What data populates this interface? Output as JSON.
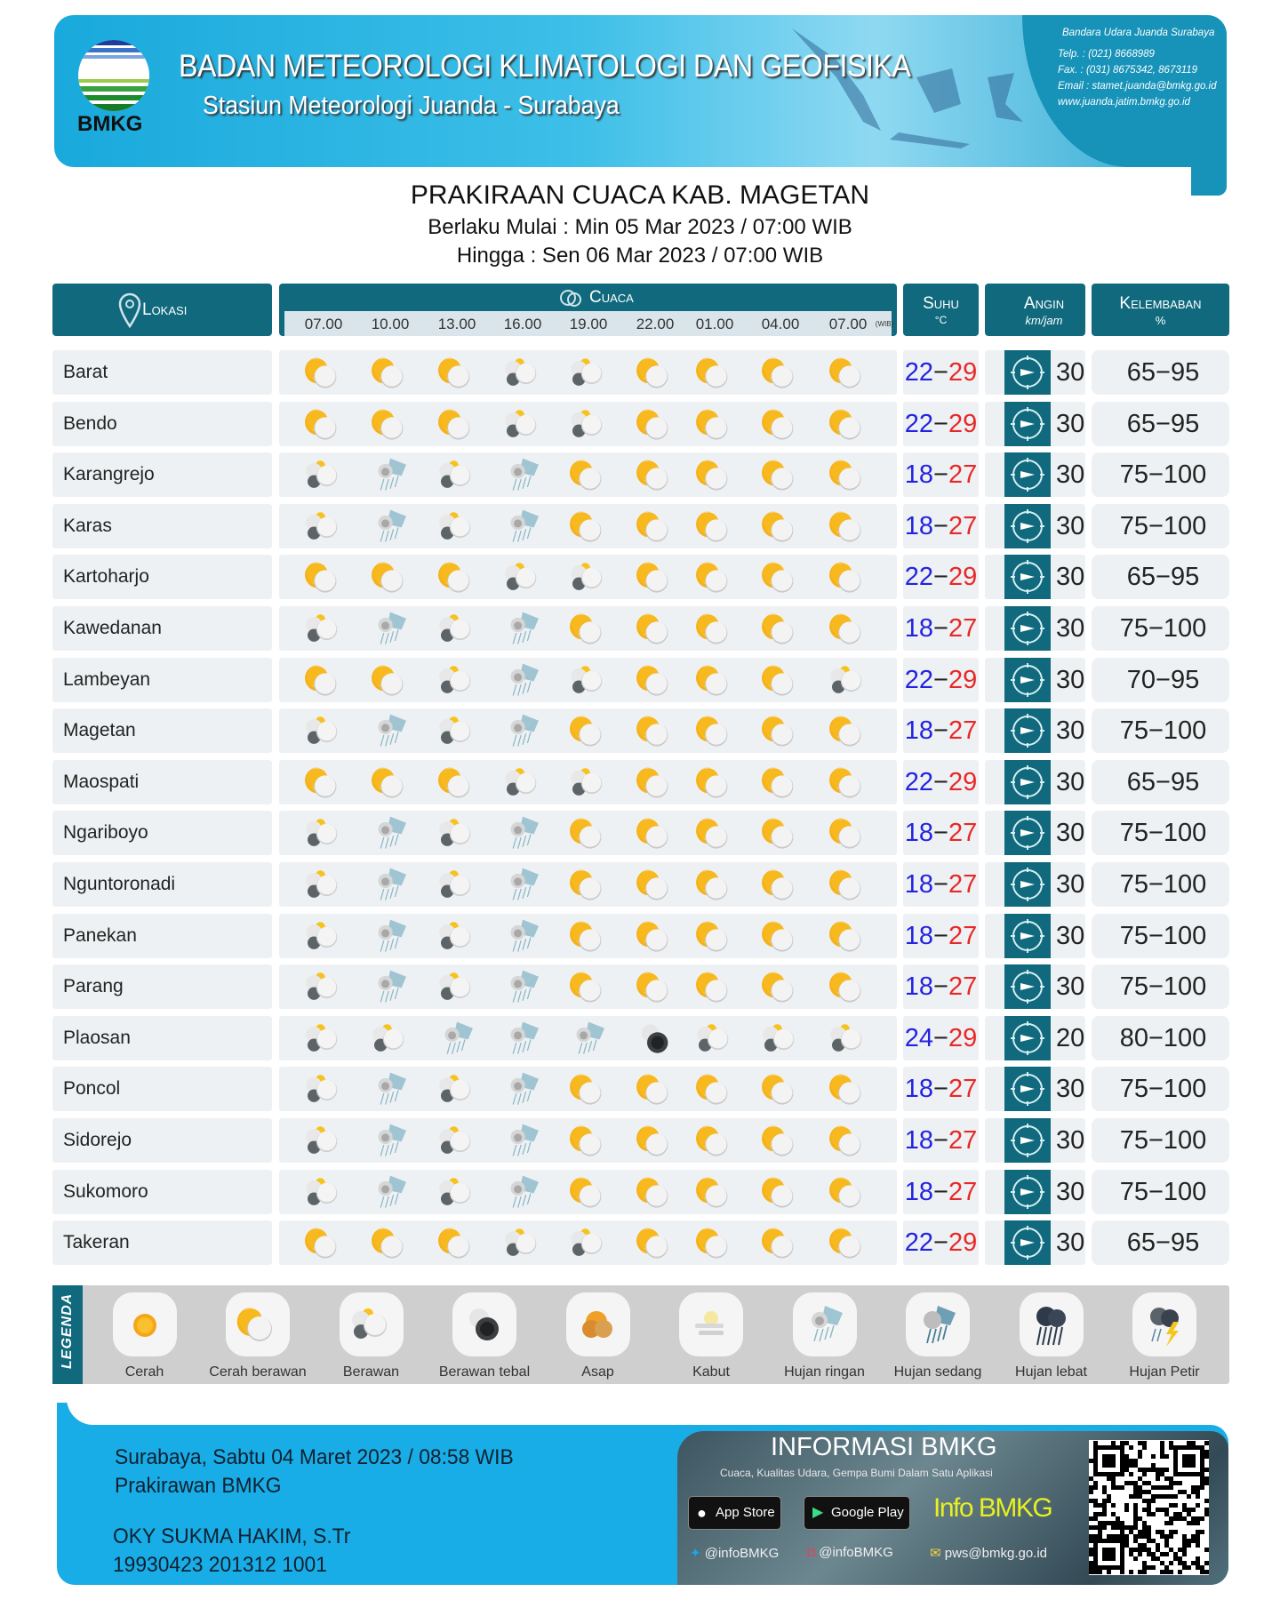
{
  "header": {
    "org_name": "BADAN METEOROLOGI KLIMATOLOGI DAN GEOFISIKA",
    "station": "Stasiun Meteorologi Juanda - Surabaya",
    "logo_text": "BMKG",
    "contact": {
      "address": "Bandara Udara Juanda  Surabaya",
      "telp": "Telp.  : (021) 8668989",
      "fax": "Fax.   : (031) 8675342, 8673119",
      "email": "Email : stamet.juanda@bmkg.go.id",
      "web": "www.juanda.jatim.bmkg.go.id"
    }
  },
  "title": "PRAKIRAAN CUACA KAB. MAGETAN",
  "valid_from": "Berlaku Mulai : Min 05 Mar 2023 / 07:00 WIB",
  "valid_to": "Hingga : Sen 06 Mar 2023 / 07:00 WIB",
  "table": {
    "headers": {
      "lokasi": "Lokasi",
      "cuaca": "Cuaca",
      "suhu": "Suhu",
      "suhu_unit": "°C",
      "angin": "Angin",
      "angin_unit": "km/jam",
      "kelembaban": "Kelembaban",
      "kelembaban_unit": "%",
      "hours_unit": "(WIB)"
    },
    "hours": [
      "07.00",
      "10.00",
      "13.00",
      "16.00",
      "19.00",
      "22.00",
      "01.00",
      "04.00",
      "07.00"
    ],
    "wind_direction_icon": "compass-arrow-east-icon",
    "rows": [
      {
        "name": "Barat",
        "wx": [
          "cerah-berawan",
          "cerah-berawan",
          "cerah-berawan",
          "berawan",
          "berawan",
          "cerah-berawan",
          "cerah-berawan",
          "cerah-berawan",
          "cerah-berawan"
        ],
        "tmin": "22",
        "tmax": "29",
        "wind": "30",
        "hum": "65−95"
      },
      {
        "name": "Bendo",
        "wx": [
          "cerah-berawan",
          "cerah-berawan",
          "cerah-berawan",
          "berawan",
          "berawan",
          "cerah-berawan",
          "cerah-berawan",
          "cerah-berawan",
          "cerah-berawan"
        ],
        "tmin": "22",
        "tmax": "29",
        "wind": "30",
        "hum": "65−95"
      },
      {
        "name": "Karangrejo",
        "wx": [
          "berawan",
          "hujan-ringan",
          "berawan",
          "hujan-ringan",
          "cerah-berawan",
          "cerah-berawan",
          "cerah-berawan",
          "cerah-berawan",
          "cerah-berawan"
        ],
        "tmin": "18",
        "tmax": "27",
        "wind": "30",
        "hum": "75−100"
      },
      {
        "name": "Karas",
        "wx": [
          "berawan",
          "hujan-ringan",
          "berawan",
          "hujan-ringan",
          "cerah-berawan",
          "cerah-berawan",
          "cerah-berawan",
          "cerah-berawan",
          "cerah-berawan"
        ],
        "tmin": "18",
        "tmax": "27",
        "wind": "30",
        "hum": "75−100"
      },
      {
        "name": "Kartoharjo",
        "wx": [
          "cerah-berawan",
          "cerah-berawan",
          "cerah-berawan",
          "berawan",
          "berawan",
          "cerah-berawan",
          "cerah-berawan",
          "cerah-berawan",
          "cerah-berawan"
        ],
        "tmin": "22",
        "tmax": "29",
        "wind": "30",
        "hum": "65−95"
      },
      {
        "name": "Kawedanan",
        "wx": [
          "berawan",
          "hujan-ringan",
          "berawan",
          "hujan-ringan",
          "cerah-berawan",
          "cerah-berawan",
          "cerah-berawan",
          "cerah-berawan",
          "cerah-berawan"
        ],
        "tmin": "18",
        "tmax": "27",
        "wind": "30",
        "hum": "75−100"
      },
      {
        "name": "Lambeyan",
        "wx": [
          "cerah-berawan",
          "cerah-berawan",
          "berawan",
          "hujan-ringan",
          "berawan",
          "cerah-berawan",
          "cerah-berawan",
          "cerah-berawan",
          "berawan"
        ],
        "tmin": "22",
        "tmax": "29",
        "wind": "30",
        "hum": "70−95"
      },
      {
        "name": "Magetan",
        "wx": [
          "berawan",
          "hujan-ringan",
          "berawan",
          "hujan-ringan",
          "cerah-berawan",
          "cerah-berawan",
          "cerah-berawan",
          "cerah-berawan",
          "cerah-berawan"
        ],
        "tmin": "18",
        "tmax": "27",
        "wind": "30",
        "hum": "75−100"
      },
      {
        "name": "Maospati",
        "wx": [
          "cerah-berawan",
          "cerah-berawan",
          "cerah-berawan",
          "berawan",
          "berawan",
          "cerah-berawan",
          "cerah-berawan",
          "cerah-berawan",
          "cerah-berawan"
        ],
        "tmin": "22",
        "tmax": "29",
        "wind": "30",
        "hum": "65−95"
      },
      {
        "name": "Ngariboyo",
        "wx": [
          "berawan",
          "hujan-ringan",
          "berawan",
          "hujan-ringan",
          "cerah-berawan",
          "cerah-berawan",
          "cerah-berawan",
          "cerah-berawan",
          "cerah-berawan"
        ],
        "tmin": "18",
        "tmax": "27",
        "wind": "30",
        "hum": "75−100"
      },
      {
        "name": "Nguntoronadi",
        "wx": [
          "berawan",
          "hujan-ringan",
          "berawan",
          "hujan-ringan",
          "cerah-berawan",
          "cerah-berawan",
          "cerah-berawan",
          "cerah-berawan",
          "cerah-berawan"
        ],
        "tmin": "18",
        "tmax": "27",
        "wind": "30",
        "hum": "75−100"
      },
      {
        "name": "Panekan",
        "wx": [
          "berawan",
          "hujan-ringan",
          "berawan",
          "hujan-ringan",
          "cerah-berawan",
          "cerah-berawan",
          "cerah-berawan",
          "cerah-berawan",
          "cerah-berawan"
        ],
        "tmin": "18",
        "tmax": "27",
        "wind": "30",
        "hum": "75−100"
      },
      {
        "name": "Parang",
        "wx": [
          "berawan",
          "hujan-ringan",
          "berawan",
          "hujan-ringan",
          "cerah-berawan",
          "cerah-berawan",
          "cerah-berawan",
          "cerah-berawan",
          "cerah-berawan"
        ],
        "tmin": "18",
        "tmax": "27",
        "wind": "30",
        "hum": "75−100"
      },
      {
        "name": "Plaosan",
        "wx": [
          "berawan",
          "berawan",
          "hujan-ringan",
          "hujan-ringan",
          "hujan-ringan",
          "berawan-tebal",
          "berawan",
          "berawan",
          "berawan"
        ],
        "tmin": "24",
        "tmax": "29",
        "wind": "20",
        "hum": "80−100"
      },
      {
        "name": "Poncol",
        "wx": [
          "berawan",
          "hujan-ringan",
          "berawan",
          "hujan-ringan",
          "cerah-berawan",
          "cerah-berawan",
          "cerah-berawan",
          "cerah-berawan",
          "cerah-berawan"
        ],
        "tmin": "18",
        "tmax": "27",
        "wind": "30",
        "hum": "75−100"
      },
      {
        "name": "Sidorejo",
        "wx": [
          "berawan",
          "hujan-ringan",
          "berawan",
          "hujan-ringan",
          "cerah-berawan",
          "cerah-berawan",
          "cerah-berawan",
          "cerah-berawan",
          "cerah-berawan"
        ],
        "tmin": "18",
        "tmax": "27",
        "wind": "30",
        "hum": "75−100"
      },
      {
        "name": "Sukomoro",
        "wx": [
          "berawan",
          "hujan-ringan",
          "berawan",
          "hujan-ringan",
          "cerah-berawan",
          "cerah-berawan",
          "cerah-berawan",
          "cerah-berawan",
          "cerah-berawan"
        ],
        "tmin": "18",
        "tmax": "27",
        "wind": "30",
        "hum": "75−100"
      },
      {
        "name": "Takeran",
        "wx": [
          "cerah-berawan",
          "cerah-berawan",
          "cerah-berawan",
          "berawan",
          "berawan",
          "cerah-berawan",
          "cerah-berawan",
          "cerah-berawan",
          "cerah-berawan"
        ],
        "tmin": "22",
        "tmax": "29",
        "wind": "30",
        "hum": "65−95"
      }
    ]
  },
  "legend": {
    "title": "LEGENDA",
    "items": [
      {
        "key": "cerah",
        "label": "Cerah"
      },
      {
        "key": "cerah-berawan",
        "label": "Cerah berawan"
      },
      {
        "key": "berawan",
        "label": "Berawan"
      },
      {
        "key": "berawan-tebal",
        "label": "Berawan tebal"
      },
      {
        "key": "asap",
        "label": "Asap"
      },
      {
        "key": "kabut",
        "label": "Kabut"
      },
      {
        "key": "hujan-ringan",
        "label": "Hujan ringan"
      },
      {
        "key": "hujan-sedang",
        "label": "Hujan sedang"
      },
      {
        "key": "hujan-lebat",
        "label": "Hujan lebat"
      },
      {
        "key": "hujan-petir",
        "label": "Hujan Petir"
      }
    ]
  },
  "footer": {
    "issued": "Surabaya, Sabtu 04 Maret 2023 / 08:58 WIB",
    "role": "Prakirawan BMKG",
    "forecaster": "OKY SUKMA HAKIM, S.Tr",
    "nip": "19930423 201312 1001",
    "info_title": "INFORMASI BMKG",
    "info_sub": "Cuaca, Kualitas Udara, Gempa Bumi Dalam Satu Aplikasi",
    "app_store": "App Store",
    "google_play": "Google Play",
    "app_name": "Info BMKG",
    "twitter": "@infoBMKG",
    "instagram": "@infoBMKG",
    "email": "pws@bmkg.go.id"
  },
  "colors": {
    "teal": "#10697d",
    "temp_min": "#2323e0",
    "temp_max": "#e82828",
    "header_blue": "#19a9dc",
    "footer_blue": "#18ade6"
  }
}
